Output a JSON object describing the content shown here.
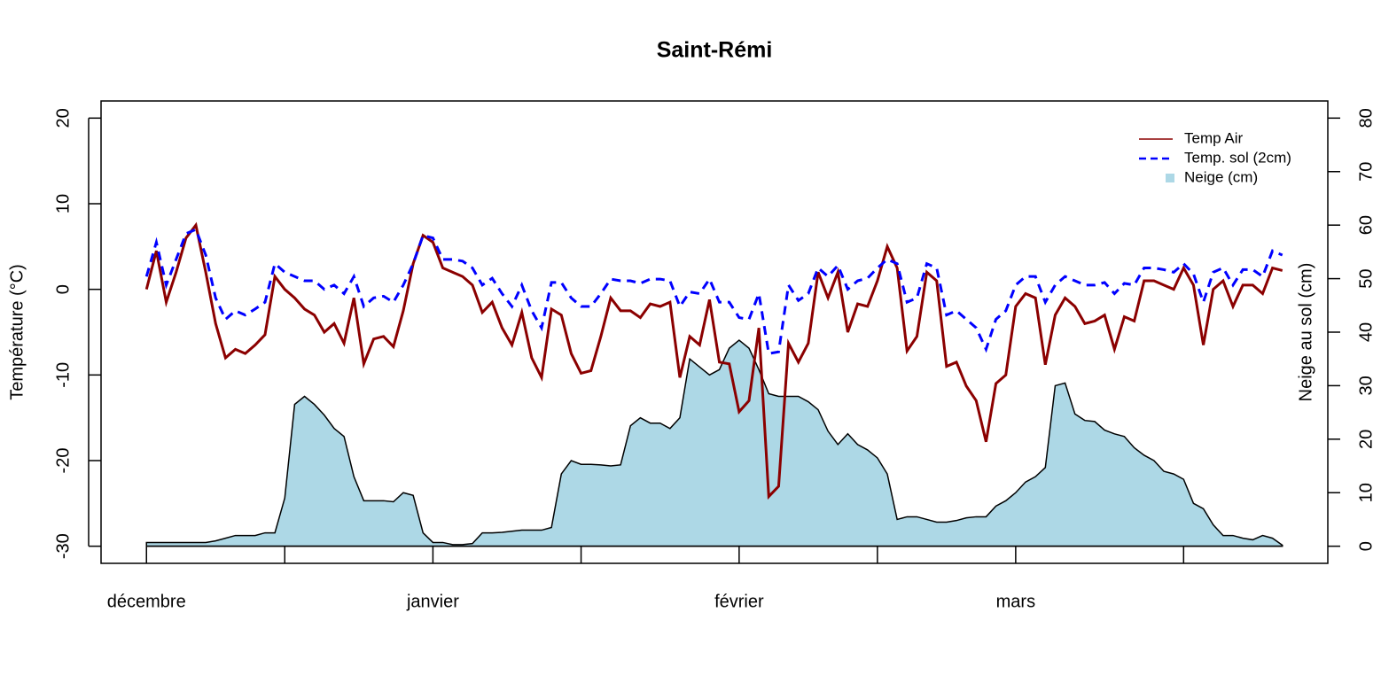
{
  "chart_data": {
    "type": "line",
    "title": "Saint-Rémi",
    "y_label": "Température (°C)",
    "y2_label": "Neige au sol (cm)",
    "legend": "topright",
    "categories": [
      "décembre",
      null,
      null,
      null,
      null,
      null,
      null,
      null,
      null,
      null,
      null,
      null,
      null,
      null,
      null,
      null,
      null,
      null,
      null,
      null,
      null,
      null,
      null,
      null,
      null,
      null,
      null,
      null,
      null,
      "janvier",
      null,
      null,
      null,
      null,
      null,
      null,
      null,
      null,
      null,
      null,
      null,
      null,
      null,
      null,
      null,
      null,
      null,
      null,
      null,
      null,
      null,
      null,
      null,
      null,
      null,
      null,
      null,
      null,
      null,
      null,
      "février",
      null,
      null,
      null,
      null,
      null,
      null,
      null,
      null,
      null,
      null,
      null,
      null,
      null,
      null,
      null,
      null,
      null,
      null,
      null,
      null,
      null,
      null,
      null,
      null,
      null,
      null,
      null,
      "mars",
      null,
      null,
      null,
      null,
      null,
      null,
      null,
      null,
      null,
      null,
      null,
      null,
      null,
      null,
      null,
      null,
      null,
      null,
      null,
      null,
      null,
      null,
      null,
      null,
      null,
      null,
      null
    ],
    "xlim": [
      -4.6,
      119.6
    ],
    "xticks": [
      0,
      14,
      29,
      44,
      60,
      74,
      88,
      105
    ],
    "ylim": [
      -32,
      22
    ],
    "yticks": [
      -30,
      -20,
      -10,
      0,
      10,
      20
    ],
    "y2lim": [
      -3.2,
      83.2
    ],
    "y2ticks": [
      0,
      10,
      20,
      30,
      40,
      50,
      60,
      70,
      80
    ],
    "series": [
      {
        "name": "Neige (cm)",
        "color": "#add8e6",
        "kind": "area",
        "axis": "y2",
        "values": [
          0.7,
          0.7,
          0.7,
          0.7,
          0.7,
          0.7,
          0.7,
          1,
          1.5,
          2,
          2,
          2,
          2.5,
          2.5,
          9,
          26.5,
          28,
          26.5,
          24.5,
          22,
          20.5,
          13,
          8.5,
          8.5,
          8.5,
          8.3,
          10,
          9.5,
          2.5,
          0.7,
          0.7,
          0.3,
          0.3,
          0.5,
          2.5,
          2.5,
          2.6,
          2.8,
          3,
          3,
          3,
          3.5,
          13.5,
          16,
          15.3,
          15.3,
          15.2,
          15,
          15.2,
          22.5,
          24,
          23,
          23,
          22,
          24,
          35,
          33.5,
          32,
          33,
          37,
          38.5,
          37,
          33,
          28.5,
          28,
          28,
          28,
          27,
          25.5,
          21.5,
          19,
          21,
          19,
          18,
          16.5,
          13.5,
          5,
          5.5,
          5.5,
          5,
          4.5,
          4.5,
          4.8,
          5.3,
          5.5,
          5.5,
          7.5,
          8.5,
          10,
          12,
          13,
          14.7,
          30,
          30.5,
          24.7,
          23.5,
          23.3,
          21.7,
          21,
          20.5,
          18.4,
          17,
          16,
          14,
          13.5,
          12.5,
          8,
          7,
          4,
          2,
          2,
          1.5,
          1.2,
          2,
          1.5,
          0.2
        ]
      },
      {
        "name": "Temp Air",
        "color": "#8b0000",
        "kind": "solid",
        "values": [
          0,
          4.5,
          -1.5,
          2,
          6,
          7.5,
          2,
          -4,
          -8,
          -7,
          -7.5,
          -6.5,
          -5.3,
          1.5,
          0,
          -1,
          -2.3,
          -3,
          -5,
          -4,
          -6.3,
          -1,
          -8.7,
          -5.8,
          -5.5,
          -6.7,
          -2.5,
          3,
          6.3,
          5.5,
          2.5,
          2,
          1.5,
          0.5,
          -2.7,
          -1.5,
          -4.5,
          -6.5,
          -2.7,
          -8,
          -10.3,
          -2.3,
          -3,
          -7.5,
          -9.8,
          -9.5,
          -5.5,
          -1,
          -2.5,
          -2.5,
          -3.3,
          -1.7,
          -2,
          -1.5,
          -10.3,
          -5.5,
          -6.5,
          -1.2,
          -8.5,
          -8.7,
          -14.3,
          -13,
          -4.5,
          -24.2,
          -23,
          -6.3,
          -8.5,
          -6.3,
          2,
          -1,
          2,
          -5,
          -1.7,
          -2,
          1,
          5,
          2.5,
          -7.2,
          -5.5,
          2,
          1,
          -9,
          -8.5,
          -11.3,
          -13,
          -17.8,
          -11,
          -10,
          -2,
          -0.5,
          -1,
          -8.8,
          -3,
          -1,
          -2,
          -4,
          -3.7,
          -3,
          -7,
          -3.2,
          -3.7,
          1,
          1,
          0.5,
          0,
          2.5,
          0.5,
          -6.5,
          0,
          1,
          -2,
          0.5,
          0.5,
          -0.5,
          2.5,
          2.2
        ]
      },
      {
        "name": "Temp. sol (2cm)",
        "color": "#0000ff",
        "kind": "dashed",
        "values": [
          1.5,
          5.5,
          0.5,
          3.5,
          6.5,
          7,
          4,
          -1,
          -3.5,
          -2.5,
          -3,
          -2.3,
          -1.5,
          3,
          2,
          1.5,
          1,
          1,
          0,
          0.5,
          -0.5,
          1.5,
          -2,
          -1,
          -0.8,
          -1.5,
          0.5,
          3,
          6.3,
          6,
          3.5,
          3.5,
          3.3,
          2.5,
          0.5,
          1.3,
          -0.5,
          -2,
          0.5,
          -2.5,
          -4.5,
          0.8,
          0.8,
          -1,
          -2,
          -2,
          -0.5,
          1.2,
          1,
          1,
          0.7,
          1.2,
          1.2,
          1,
          -2,
          -0.3,
          -0.5,
          1.2,
          -1.5,
          -1.5,
          -3.3,
          -3.5,
          -0.5,
          -7.5,
          -7.3,
          0.5,
          -1.3,
          -0.5,
          2.5,
          1.5,
          2.8,
          0,
          1,
          1.3,
          2.5,
          3.5,
          3,
          -1.5,
          -1,
          3,
          2.5,
          -3,
          -2.5,
          -3.5,
          -4.5,
          -7,
          -3.5,
          -2.5,
          0.5,
          1.5,
          1.5,
          -1.5,
          0.5,
          1.5,
          1,
          0.5,
          0.5,
          0.8,
          -0.5,
          0.7,
          0.5,
          2.5,
          2.5,
          2.3,
          2,
          3,
          1.8,
          -1.5,
          2,
          2.5,
          0.5,
          2.3,
          2.3,
          1.5,
          4.5,
          4
        ]
      }
    ]
  }
}
